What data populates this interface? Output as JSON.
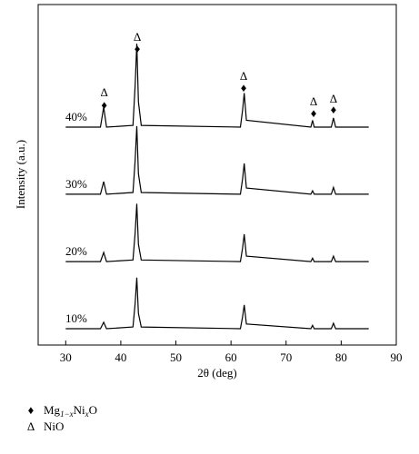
{
  "chart_data": {
    "type": "line",
    "xlabel": "2θ (deg)",
    "ylabel": "Intensity (a.u.)",
    "x": [
      30,
      36.3,
      36.9,
      37.4,
      42.2,
      42.6,
      42.9,
      43.2,
      43.7,
      61.7,
      62.1,
      62.4,
      62.8,
      74.5,
      74.8,
      75.1,
      78.2,
      78.6,
      79.0,
      85
    ],
    "xlim": [
      25,
      90
    ],
    "xticks": [
      30,
      40,
      50,
      60,
      70,
      80,
      90
    ],
    "ylim": [
      0,
      100
    ],
    "series": [
      {
        "name": "40%",
        "color": "#000000",
        "values": [
          64,
          64,
          69.9,
          64,
          64.5,
          76.3,
          88.5,
          71.4,
          64.5,
          64,
          69,
          74,
          66,
          64,
          66,
          64,
          64,
          66.7,
          64,
          64
        ]
      },
      {
        "name": "30%",
        "color": "#000000",
        "values": [
          44.3,
          44.3,
          48,
          44.3,
          44.8,
          54.3,
          64.3,
          50.3,
          44.8,
          44.3,
          48.8,
          53.3,
          46.1,
          44.3,
          45.3,
          44.3,
          44.3,
          46.3,
          44.3,
          44.3
        ]
      },
      {
        "name": "20%",
        "color": "#000000",
        "values": [
          24.5,
          24.5,
          27.2,
          24.5,
          25,
          33,
          41.5,
          29.6,
          25,
          24.5,
          28.5,
          32.5,
          26.1,
          24.5,
          25.5,
          24.5,
          24.5,
          26.1,
          24.5,
          24.5
        ]
      },
      {
        "name": "10%",
        "color": "#000000",
        "values": [
          4.8,
          4.8,
          6.7,
          4.8,
          5.3,
          12.3,
          19.8,
          9.3,
          5.3,
          4.8,
          8.3,
          11.8,
          6.2,
          4.8,
          5.8,
          4.8,
          4.8,
          6.4,
          4.8,
          4.8
        ]
      }
    ],
    "peak_markers": [
      {
        "x": [
          37,
          43,
          62.3,
          75,
          78.6
        ],
        "y": [
          70.1,
          86.7,
          75.2,
          67.7,
          68.8
        ]
      },
      {
        "x": [
          37,
          43,
          62.3,
          75,
          78.6
        ],
        "y": [
          73.9,
          90.1,
          78.7,
          71.2,
          72
        ]
      }
    ],
    "legend": [
      {
        "symbol": "♦",
        "parts": [
          "Mg",
          "1−x",
          "Ni",
          "x",
          "O"
        ]
      },
      {
        "symbol": "Δ",
        "parts": [
          "NiO"
        ]
      }
    ]
  }
}
